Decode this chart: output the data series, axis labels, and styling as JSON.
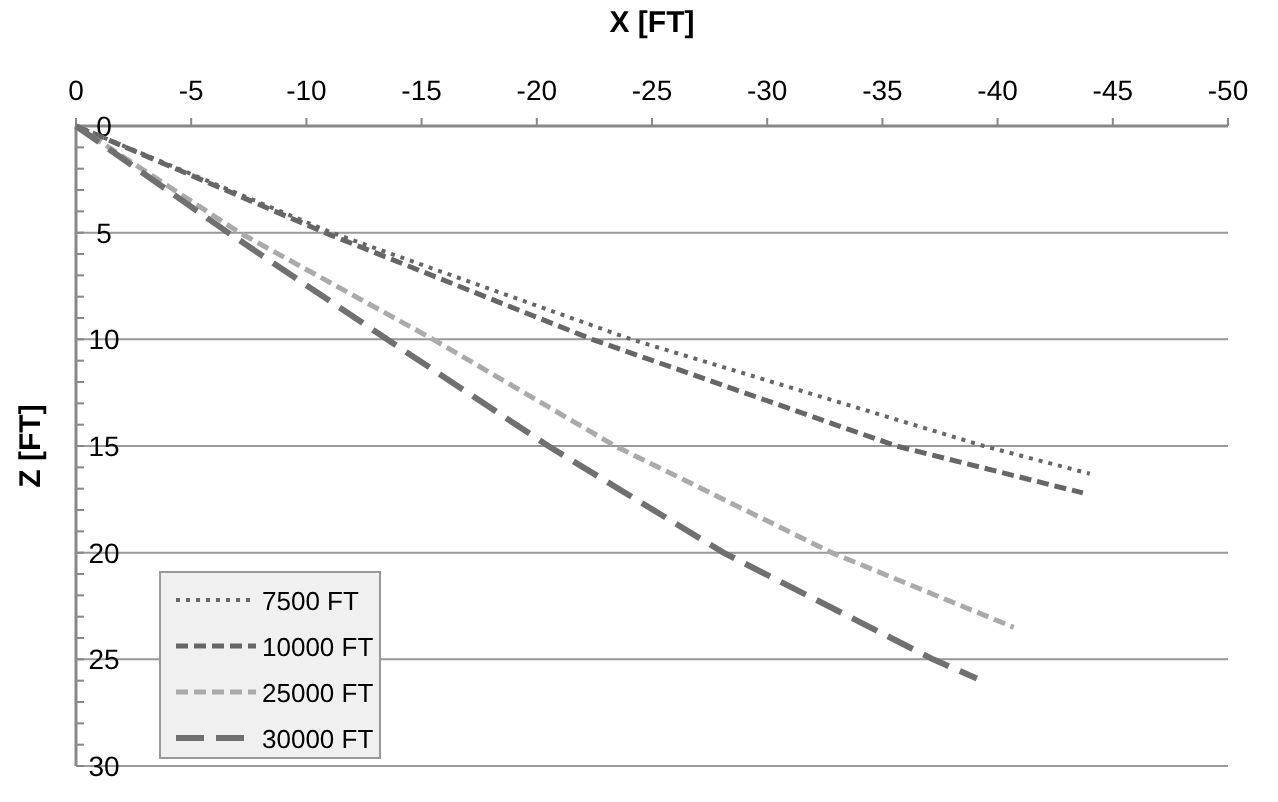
{
  "chart_data": {
    "type": "line",
    "xlabel": "X [FT]",
    "ylabel": "Z [FT]",
    "xlim": [
      0,
      -50
    ],
    "xticks": [
      0,
      -5,
      -10,
      -15,
      -20,
      -25,
      -30,
      -35,
      -40,
      -45,
      -50
    ],
    "ylim": [
      30,
      0
    ],
    "yticks": [
      0,
      5,
      10,
      15,
      20,
      25,
      30
    ],
    "grid": "y",
    "legend": "bottom left",
    "marker": "none",
    "series": [
      {
        "name": "7500 FT",
        "color": "#666666",
        "line_style": "dotted",
        "x": [
          0,
          -11.1,
          -24.1,
          -39.4,
          -44.0
        ],
        "values": [
          0,
          5,
          10,
          15,
          16.3
        ]
      },
      {
        "name": "10000 FT",
        "color": "#666666",
        "line_style": "dashed",
        "x": [
          0,
          -10.8,
          -22.4,
          -35.6,
          -43.7
        ],
        "values": [
          0,
          5,
          10,
          15,
          17.2
        ]
      },
      {
        "name": "25000 FT",
        "color": "#aaaaaa",
        "line_style": "dashed",
        "x": [
          0,
          -7.1,
          -15.5,
          -23.4,
          -32.8,
          -40.7
        ],
        "values": [
          0,
          5,
          10,
          15,
          20,
          23.5
        ]
      },
      {
        "name": "30000 FT",
        "color": "#707070",
        "line_style": "longdash",
        "x": [
          0,
          -6.6,
          -13.5,
          -20.5,
          -28.1,
          -37.2,
          -39.1
        ],
        "values": [
          0,
          5,
          10,
          15,
          20,
          25,
          25.9
        ]
      }
    ]
  }
}
